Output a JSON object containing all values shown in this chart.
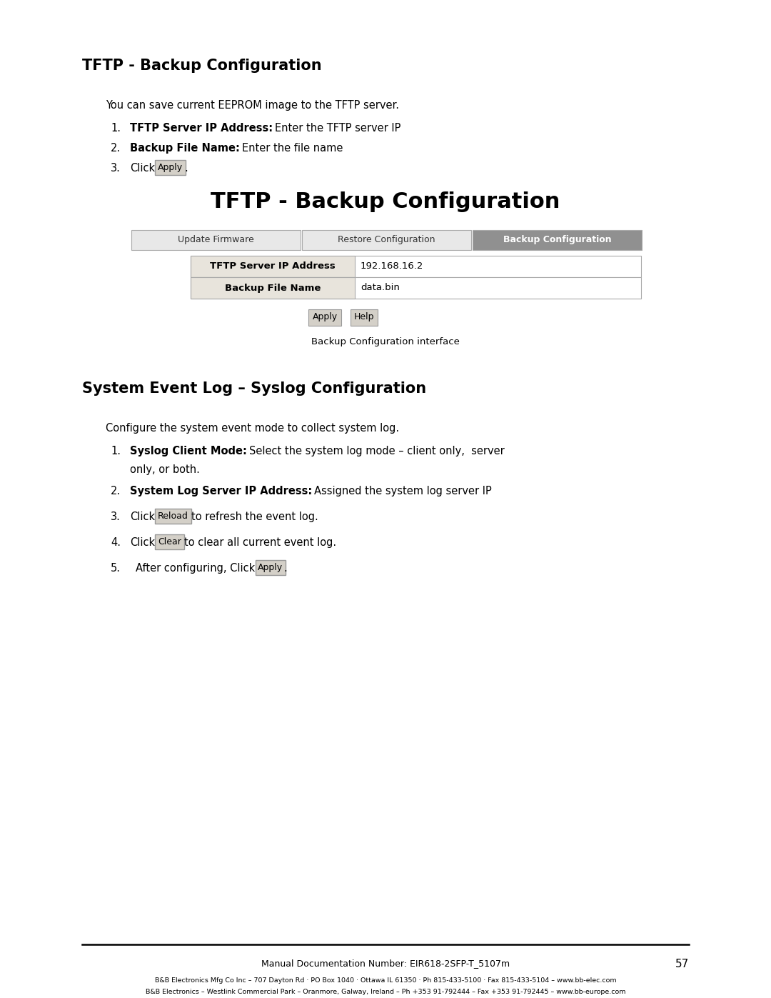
{
  "bg_color": "#ffffff",
  "text_color": "#000000",
  "page_width": 10.8,
  "page_height": 13.97,
  "dpi": 100,
  "section1_title": "TFTP - Backup Configuration",
  "section1_intro": "You can save current EEPROM image to the TFTP server.",
  "ui_title": "TFTP - Backup Configuration",
  "tab_labels": [
    "Update Firmware",
    "Restore Configuration",
    "Backup Configuration"
  ],
  "active_tab": 2,
  "form_fields": [
    {
      "label": "TFTP Server IP Address",
      "value": "192.168.16.2"
    },
    {
      "label": "Backup File Name",
      "value": "data.bin"
    }
  ],
  "form_buttons": [
    "Apply",
    "Help"
  ],
  "ui_caption": "Backup Configuration interface",
  "section2_title": "System Event Log – Syslog Configuration",
  "section2_intro": "Configure the system event mode to collect system log.",
  "footer_line_color": "#000000",
  "footer_doc": "Manual Documentation Number: EIR618-2SFP-T_5107m",
  "footer_page": "57",
  "footer_company1": "B&B Electronics Mfg Co Inc – 707 Dayton Rd · PO Box 1040 · Ottawa IL 61350 · Ph 815-433-5100 · Fax 815-433-5104 – www.bb-elec.com",
  "footer_company2": "B&B Electronics – Westlink Commercial Park – Oranmore, Galway, Ireland – Ph +353 91-792444 – Fax +353 91-792445 – www.bb-europe.com"
}
